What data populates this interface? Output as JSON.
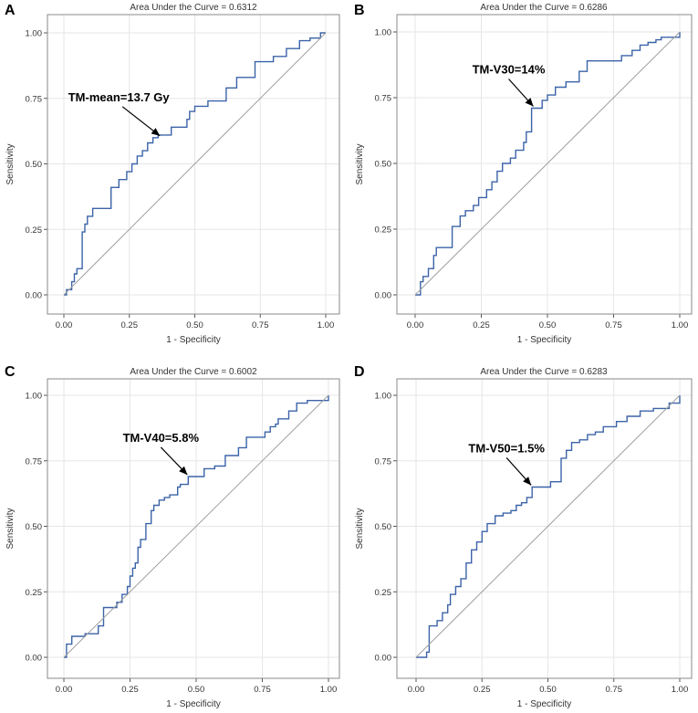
{
  "chart_data": [
    {
      "panel": "A",
      "type": "line",
      "title": "Area Under the Curve = 0.6312",
      "xlabel": "1 - Specificity",
      "ylabel": "Sensitivity",
      "xlim": [
        0,
        1
      ],
      "ylim": [
        0,
        1
      ],
      "xticks": [
        "0.00",
        "0.25",
        "0.50",
        "0.75",
        "1.00"
      ],
      "yticks": [
        "0.00",
        "0.25",
        "0.50",
        "0.75",
        "1.00"
      ],
      "annotation": {
        "label": "TM-mean=13.7 Gy",
        "x": 0.37,
        "y": 0.6
      },
      "series": [
        {
          "name": "ROC",
          "x": [
            0,
            0.01,
            0.01,
            0.03,
            0.03,
            0.04,
            0.04,
            0.05,
            0.05,
            0.07,
            0.07,
            0.08,
            0.08,
            0.09,
            0.09,
            0.11,
            0.11,
            0.12,
            0.12,
            0.18,
            0.18,
            0.21,
            0.21,
            0.24,
            0.24,
            0.26,
            0.26,
            0.28,
            0.28,
            0.3,
            0.3,
            0.32,
            0.32,
            0.34,
            0.34,
            0.36,
            0.36,
            0.38,
            0.38,
            0.41,
            0.41,
            0.47,
            0.47,
            0.48,
            0.48,
            0.5,
            0.5,
            0.53,
            0.53,
            0.55,
            0.55,
            0.62,
            0.62,
            0.66,
            0.66,
            0.69,
            0.69,
            0.73,
            0.73,
            0.8,
            0.8,
            0.85,
            0.85,
            0.88,
            0.88,
            0.9,
            0.9,
            0.92,
            0.92,
            0.94,
            0.94,
            0.98,
            0.98,
            1.0
          ],
          "y": [
            0,
            0,
            0.02,
            0.02,
            0.05,
            0.05,
            0.08,
            0.08,
            0.1,
            0.1,
            0.24,
            0.24,
            0.27,
            0.27,
            0.3,
            0.3,
            0.33,
            0.33,
            0.33,
            0.33,
            0.41,
            0.41,
            0.44,
            0.44,
            0.47,
            0.47,
            0.5,
            0.5,
            0.53,
            0.53,
            0.55,
            0.55,
            0.58,
            0.58,
            0.6,
            0.6,
            0.61,
            0.61,
            0.61,
            0.61,
            0.64,
            0.64,
            0.67,
            0.67,
            0.7,
            0.7,
            0.72,
            0.72,
            0.72,
            0.72,
            0.74,
            0.74,
            0.79,
            0.79,
            0.83,
            0.83,
            0.83,
            0.83,
            0.89,
            0.89,
            0.91,
            0.91,
            0.94,
            0.94,
            0.94,
            0.94,
            0.97,
            0.97,
            0.97,
            0.97,
            0.98,
            0.98,
            1.0,
            1.0
          ]
        },
        {
          "name": "Reference",
          "x": [
            0,
            1
          ],
          "y": [
            0,
            1
          ]
        }
      ]
    },
    {
      "panel": "B",
      "type": "line",
      "title": "Area Under the Curve = 0.6286",
      "xlabel": "1 - Specificity",
      "ylabel": "Sensitivity",
      "xlim": [
        0,
        1
      ],
      "ylim": [
        0,
        1
      ],
      "xticks": [
        "0.00",
        "0.25",
        "0.50",
        "0.75",
        "1.00"
      ],
      "yticks": [
        "0.00",
        "0.25",
        "0.50",
        "0.75",
        "1.00"
      ],
      "annotation": {
        "label": "TM-V30=14%",
        "x": 0.45,
        "y": 0.71
      },
      "series": [
        {
          "name": "ROC",
          "x": [
            0,
            0.02,
            0.02,
            0.03,
            0.03,
            0.05,
            0.05,
            0.07,
            0.07,
            0.08,
            0.08,
            0.14,
            0.14,
            0.17,
            0.17,
            0.19,
            0.19,
            0.22,
            0.22,
            0.24,
            0.24,
            0.27,
            0.27,
            0.29,
            0.29,
            0.31,
            0.31,
            0.33,
            0.33,
            0.36,
            0.36,
            0.38,
            0.38,
            0.41,
            0.41,
            0.42,
            0.42,
            0.44,
            0.44,
            0.45,
            0.45,
            0.48,
            0.48,
            0.5,
            0.5,
            0.53,
            0.53,
            0.57,
            0.57,
            0.62,
            0.62,
            0.65,
            0.65,
            0.78,
            0.78,
            0.82,
            0.82,
            0.85,
            0.85,
            0.88,
            0.88,
            0.91,
            0.91,
            0.93,
            0.93,
            1.0,
            1.0
          ],
          "y": [
            0,
            0,
            0.05,
            0.05,
            0.07,
            0.07,
            0.1,
            0.1,
            0.15,
            0.15,
            0.18,
            0.18,
            0.26,
            0.26,
            0.3,
            0.3,
            0.32,
            0.32,
            0.34,
            0.34,
            0.37,
            0.37,
            0.4,
            0.4,
            0.43,
            0.43,
            0.47,
            0.47,
            0.5,
            0.5,
            0.52,
            0.52,
            0.55,
            0.55,
            0.58,
            0.58,
            0.62,
            0.62,
            0.71,
            0.71,
            0.71,
            0.71,
            0.74,
            0.74,
            0.76,
            0.76,
            0.79,
            0.79,
            0.81,
            0.81,
            0.85,
            0.85,
            0.89,
            0.89,
            0.91,
            0.91,
            0.93,
            0.93,
            0.95,
            0.95,
            0.96,
            0.96,
            0.97,
            0.97,
            0.98,
            0.98,
            1.0
          ]
        },
        {
          "name": "Reference",
          "x": [
            0,
            1
          ],
          "y": [
            0,
            1
          ]
        }
      ]
    },
    {
      "panel": "C",
      "type": "line",
      "title": "Area Under the Curve = 0.6002",
      "xlabel": "1 - Specificity",
      "ylabel": "Sensitivity",
      "xlim": [
        0,
        1
      ],
      "ylim": [
        0,
        1
      ],
      "xticks": [
        "0.00",
        "0.25",
        "0.50",
        "0.75",
        "1.00"
      ],
      "yticks": [
        "0.00",
        "0.25",
        "0.50",
        "0.75",
        "1.00"
      ],
      "annotation": {
        "label": "TM-V40=5.8%",
        "x": 0.47,
        "y": 0.69
      },
      "series": [
        {
          "name": "ROC",
          "x": [
            0,
            0.01,
            0.01,
            0.03,
            0.03,
            0.08,
            0.08,
            0.13,
            0.13,
            0.15,
            0.15,
            0.2,
            0.2,
            0.22,
            0.22,
            0.24,
            0.24,
            0.25,
            0.25,
            0.26,
            0.26,
            0.27,
            0.27,
            0.28,
            0.28,
            0.29,
            0.29,
            0.31,
            0.31,
            0.33,
            0.33,
            0.34,
            0.34,
            0.36,
            0.36,
            0.38,
            0.38,
            0.4,
            0.4,
            0.43,
            0.43,
            0.44,
            0.44,
            0.47,
            0.47,
            0.53,
            0.53,
            0.57,
            0.57,
            0.61,
            0.61,
            0.66,
            0.66,
            0.69,
            0.69,
            0.74,
            0.74,
            0.76,
            0.76,
            0.78,
            0.78,
            0.8,
            0.8,
            0.81,
            0.81,
            0.85,
            0.85,
            0.88,
            0.88,
            0.92,
            0.92,
            1.0,
            1.0
          ],
          "y": [
            0,
            0,
            0.05,
            0.05,
            0.08,
            0.08,
            0.09,
            0.09,
            0.12,
            0.12,
            0.19,
            0.19,
            0.21,
            0.21,
            0.24,
            0.24,
            0.27,
            0.27,
            0.31,
            0.31,
            0.34,
            0.34,
            0.36,
            0.36,
            0.42,
            0.42,
            0.45,
            0.45,
            0.51,
            0.51,
            0.56,
            0.56,
            0.58,
            0.58,
            0.6,
            0.6,
            0.61,
            0.61,
            0.62,
            0.62,
            0.65,
            0.65,
            0.66,
            0.66,
            0.69,
            0.69,
            0.72,
            0.72,
            0.73,
            0.73,
            0.77,
            0.77,
            0.8,
            0.8,
            0.84,
            0.84,
            0.84,
            0.84,
            0.86,
            0.86,
            0.88,
            0.88,
            0.89,
            0.89,
            0.91,
            0.91,
            0.94,
            0.94,
            0.97,
            0.97,
            0.98,
            0.98,
            1.0
          ]
        },
        {
          "name": "Reference",
          "x": [
            0,
            1
          ],
          "y": [
            0,
            1
          ]
        }
      ]
    },
    {
      "panel": "D",
      "type": "line",
      "title": "Area Under the Curve = 0.6283",
      "xlabel": "1 - Specificity",
      "ylabel": "Sensitivity",
      "xlim": [
        0,
        1
      ],
      "ylim": [
        0,
        1
      ],
      "xticks": [
        "0.00",
        "0.25",
        "0.50",
        "0.75",
        "1.00"
      ],
      "yticks": [
        "0.00",
        "0.25",
        "0.50",
        "0.75",
        "1.00"
      ],
      "annotation": {
        "label": "TM-V50=1.5%",
        "x": 0.44,
        "y": 0.65
      },
      "series": [
        {
          "name": "ROC",
          "x": [
            0,
            0.04,
            0.04,
            0.05,
            0.05,
            0.08,
            0.08,
            0.1,
            0.1,
            0.12,
            0.12,
            0.13,
            0.13,
            0.15,
            0.15,
            0.17,
            0.17,
            0.19,
            0.19,
            0.21,
            0.21,
            0.23,
            0.23,
            0.25,
            0.25,
            0.27,
            0.27,
            0.3,
            0.3,
            0.33,
            0.33,
            0.36,
            0.36,
            0.38,
            0.38,
            0.4,
            0.4,
            0.42,
            0.42,
            0.44,
            0.44,
            0.51,
            0.51,
            0.55,
            0.55,
            0.57,
            0.57,
            0.59,
            0.59,
            0.62,
            0.62,
            0.65,
            0.65,
            0.68,
            0.68,
            0.71,
            0.71,
            0.76,
            0.76,
            0.8,
            0.8,
            0.85,
            0.85,
            0.9,
            0.9,
            0.96,
            0.96,
            1.0,
            1.0
          ],
          "y": [
            0,
            0,
            0.02,
            0.02,
            0.12,
            0.12,
            0.14,
            0.14,
            0.17,
            0.17,
            0.2,
            0.2,
            0.24,
            0.24,
            0.27,
            0.27,
            0.3,
            0.3,
            0.36,
            0.36,
            0.41,
            0.41,
            0.44,
            0.44,
            0.48,
            0.48,
            0.51,
            0.51,
            0.54,
            0.54,
            0.55,
            0.55,
            0.56,
            0.56,
            0.58,
            0.58,
            0.59,
            0.59,
            0.61,
            0.61,
            0.65,
            0.65,
            0.67,
            0.67,
            0.76,
            0.76,
            0.79,
            0.79,
            0.82,
            0.82,
            0.83,
            0.83,
            0.85,
            0.85,
            0.86,
            0.86,
            0.88,
            0.88,
            0.9,
            0.9,
            0.92,
            0.92,
            0.94,
            0.94,
            0.95,
            0.95,
            0.97,
            0.97,
            1.0
          ]
        },
        {
          "name": "Reference",
          "x": [
            0,
            1
          ],
          "y": [
            0,
            1
          ]
        }
      ]
    }
  ]
}
